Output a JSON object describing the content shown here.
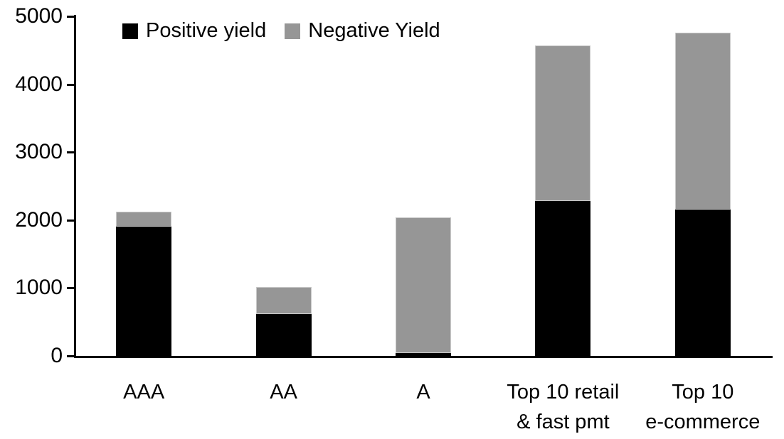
{
  "chart_data": {
    "type": "bar",
    "stacked": true,
    "title": "",
    "xlabel": "",
    "ylabel": "",
    "categories": [
      "AAA",
      "AA",
      "A",
      "Top 10 retail\n& fast pmt",
      "Top 10\ne-commerce"
    ],
    "series": [
      {
        "name": "Positive yield",
        "color": "#000000",
        "values": [
          1900,
          620,
          40,
          2280,
          2150
        ]
      },
      {
        "name": "Negative Yield",
        "color": "#969696",
        "values": [
          220,
          390,
          2000,
          2290,
          2610
        ]
      }
    ],
    "totals": [
      2120,
      1010,
      2040,
      4570,
      4760
    ],
    "ylim": [
      0,
      5000
    ],
    "yticks": [
      0,
      1000,
      2000,
      3000,
      4000,
      5000
    ],
    "legend_position": "top-left",
    "grid": false,
    "colors": {
      "background": "#ffffff",
      "axis": "#000000",
      "positive_series": "#000000",
      "negative_series": "#969696"
    }
  }
}
